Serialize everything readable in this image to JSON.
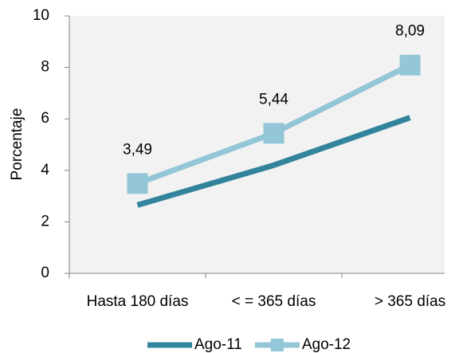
{
  "chart_data": {
    "type": "line",
    "y_label": "Porcentaje",
    "categories": [
      "Hasta 180 días",
      "< = 365 días",
      "> 365 días"
    ],
    "series": [
      {
        "name": "Ago-11",
        "color": "#31849b",
        "values": [
          2.65,
          4.2,
          6.05
        ]
      },
      {
        "name": "Ago-12",
        "color": "#93c6d6",
        "marker": "square",
        "values": [
          3.49,
          5.44,
          8.09
        ],
        "value_labels": [
          "3,49",
          "5,44",
          "8,09"
        ]
      }
    ],
    "ylim": [
      0,
      10
    ],
    "yticks": [
      0,
      2,
      4,
      6,
      8,
      10
    ],
    "grid": false,
    "legend": "bottom"
  }
}
